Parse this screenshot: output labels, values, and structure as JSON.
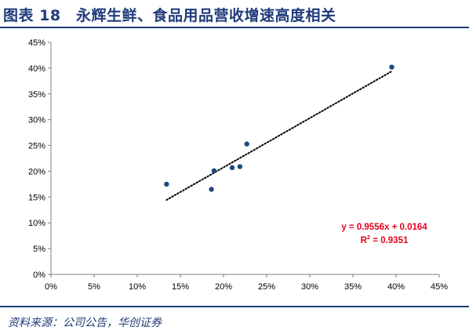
{
  "header": {
    "title": "图表 18　永辉生鲜、食品用品营收增速高度相关"
  },
  "footer": {
    "source": "资料来源：公司公告，华创证券"
  },
  "colors": {
    "marker": "#1f497d",
    "trendline": "#000000",
    "equation": "#e8001c",
    "axis": "#7f7f7f",
    "rule": "#1f3b7a"
  },
  "chart_data": {
    "type": "scatter",
    "title": "",
    "xlabel": "",
    "ylabel": "",
    "xlim": [
      0,
      0.45
    ],
    "ylim": [
      0,
      0.45
    ],
    "x_ticks": [
      0,
      0.05,
      0.1,
      0.15,
      0.2,
      0.25,
      0.3,
      0.35,
      0.4,
      0.45
    ],
    "x_tick_labels": [
      "0%",
      "5%",
      "10%",
      "15%",
      "20%",
      "25%",
      "30%",
      "35%",
      "40%",
      "45%"
    ],
    "y_ticks": [
      0,
      0.05,
      0.1,
      0.15,
      0.2,
      0.25,
      0.3,
      0.35,
      0.4,
      0.45
    ],
    "y_tick_labels": [
      "0%",
      "5%",
      "10%",
      "15%",
      "20%",
      "25%",
      "30%",
      "35%",
      "40%",
      "45%"
    ],
    "grid": false,
    "legend": "none",
    "points": [
      {
        "x": 0.134,
        "y": 0.175
      },
      {
        "x": 0.186,
        "y": 0.165
      },
      {
        "x": 0.189,
        "y": 0.201
      },
      {
        "x": 0.21,
        "y": 0.207
      },
      {
        "x": 0.219,
        "y": 0.209
      },
      {
        "x": 0.227,
        "y": 0.253
      },
      {
        "x": 0.395,
        "y": 0.402
      }
    ],
    "trendline": {
      "slope": 0.9556,
      "intercept": 0.0164,
      "x_range": [
        0.134,
        0.395
      ],
      "style": "dotted"
    },
    "annotations": {
      "equation": "y = 0.9556x + 0.0164",
      "r2_prefix": "R",
      "r2_sup": "2",
      "r2_suffix": " = 0.9351"
    }
  }
}
